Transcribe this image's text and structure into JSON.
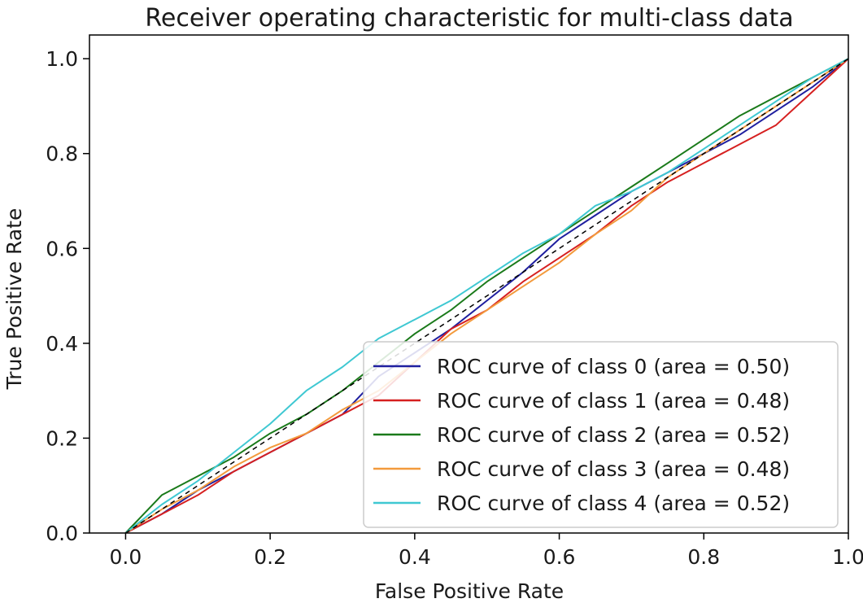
{
  "chart_data": {
    "type": "line",
    "title": "Receiver operating characteristic for multi-class data",
    "xlabel": "False Positive Rate",
    "ylabel": "True Positive Rate",
    "xlim": [
      -0.05,
      1.0
    ],
    "ylim": [
      0.0,
      1.05
    ],
    "xticks": [
      0.0,
      0.2,
      0.4,
      0.6,
      0.8,
      1.0
    ],
    "yticks": [
      0.0,
      0.2,
      0.4,
      0.6,
      0.8,
      1.0
    ],
    "xtick_labels": [
      "0.0",
      "0.2",
      "0.4",
      "0.6",
      "0.8",
      "1.0"
    ],
    "ytick_labels": [
      "0.0",
      "0.2",
      "0.4",
      "0.6",
      "0.8",
      "1.0"
    ],
    "grid": false,
    "legend_position": "lower-right",
    "diagonal_reference": {
      "style": "dashed",
      "color": "#000000",
      "x": [
        0.0,
        1.0
      ],
      "y": [
        0.0,
        1.0
      ]
    },
    "series": [
      {
        "name": "ROC curve of class 0 (area = 0.50)",
        "color": "#1f1f9f",
        "x": [
          0.0,
          0.05,
          0.1,
          0.15,
          0.2,
          0.25,
          0.3,
          0.35,
          0.4,
          0.45,
          0.5,
          0.55,
          0.6,
          0.65,
          0.7,
          0.75,
          0.8,
          0.85,
          0.9,
          0.95,
          1.0
        ],
        "y": [
          0.0,
          0.04,
          0.09,
          0.13,
          0.17,
          0.21,
          0.25,
          0.33,
          0.38,
          0.43,
          0.49,
          0.55,
          0.62,
          0.67,
          0.72,
          0.76,
          0.8,
          0.84,
          0.89,
          0.94,
          1.0
        ]
      },
      {
        "name": "ROC curve of class 1 (area = 0.48)",
        "color": "#d62020",
        "x": [
          0.0,
          0.05,
          0.1,
          0.15,
          0.2,
          0.25,
          0.3,
          0.35,
          0.4,
          0.45,
          0.5,
          0.55,
          0.6,
          0.65,
          0.7,
          0.75,
          0.8,
          0.85,
          0.9,
          0.95,
          1.0
        ],
        "y": [
          0.0,
          0.04,
          0.08,
          0.13,
          0.17,
          0.21,
          0.25,
          0.29,
          0.36,
          0.43,
          0.47,
          0.53,
          0.58,
          0.63,
          0.69,
          0.74,
          0.78,
          0.82,
          0.86,
          0.93,
          1.0
        ]
      },
      {
        "name": "ROC curve of class 2 (area = 0.52)",
        "color": "#1a7a1a",
        "x": [
          0.0,
          0.05,
          0.1,
          0.15,
          0.2,
          0.25,
          0.3,
          0.35,
          0.4,
          0.45,
          0.5,
          0.55,
          0.6,
          0.65,
          0.7,
          0.75,
          0.8,
          0.85,
          0.9,
          0.95,
          1.0
        ],
        "y": [
          0.0,
          0.08,
          0.12,
          0.16,
          0.21,
          0.25,
          0.3,
          0.36,
          0.42,
          0.47,
          0.53,
          0.58,
          0.63,
          0.68,
          0.73,
          0.78,
          0.83,
          0.88,
          0.92,
          0.96,
          1.0
        ]
      },
      {
        "name": "ROC curve of class 3 (area = 0.48)",
        "color": "#f39a3c",
        "x": [
          0.0,
          0.05,
          0.1,
          0.15,
          0.2,
          0.25,
          0.3,
          0.35,
          0.4,
          0.45,
          0.5,
          0.55,
          0.6,
          0.65,
          0.7,
          0.75,
          0.8,
          0.85,
          0.9,
          0.95,
          1.0
        ],
        "y": [
          0.0,
          0.05,
          0.09,
          0.14,
          0.18,
          0.21,
          0.26,
          0.3,
          0.36,
          0.42,
          0.47,
          0.52,
          0.57,
          0.63,
          0.68,
          0.75,
          0.8,
          0.85,
          0.9,
          0.95,
          1.0
        ]
      },
      {
        "name": "ROC curve of class 4 (area = 0.52)",
        "color": "#3fc8d2",
        "x": [
          0.0,
          0.05,
          0.1,
          0.15,
          0.2,
          0.25,
          0.3,
          0.35,
          0.4,
          0.45,
          0.5,
          0.55,
          0.6,
          0.65,
          0.7,
          0.75,
          0.8,
          0.85,
          0.9,
          0.95,
          1.0
        ],
        "y": [
          0.0,
          0.06,
          0.11,
          0.17,
          0.23,
          0.3,
          0.35,
          0.41,
          0.45,
          0.49,
          0.54,
          0.59,
          0.63,
          0.69,
          0.72,
          0.76,
          0.81,
          0.86,
          0.91,
          0.96,
          1.0
        ]
      }
    ]
  }
}
